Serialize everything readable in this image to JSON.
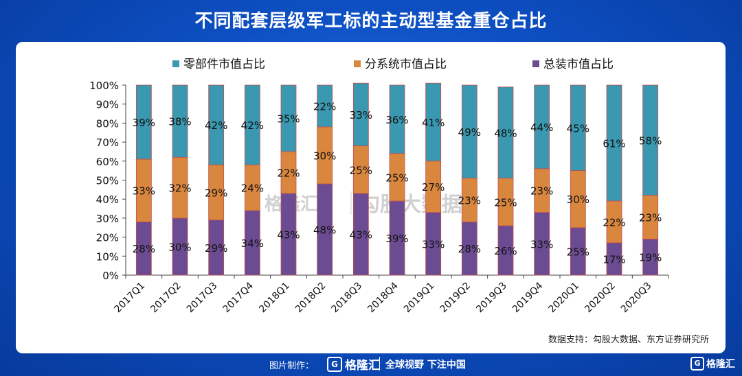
{
  "title": "不同配套层级军工标的主动型基金重仓占比",
  "source": "数据支持：勾股大数据、东方证券研究所",
  "footer": {
    "credit": "图片制作：",
    "brand": "格隆汇",
    "slogan": "全球视野 下注中国",
    "corner_brand": "格隆汇"
  },
  "watermark": {
    "brand": "格隆汇",
    "text": "勾股大数据"
  },
  "colors": {
    "background": "#0d4fc2",
    "components": "#3a98b0",
    "subsystems": "#d9873f",
    "assembly": "#6b4c93"
  },
  "chart_data": {
    "type": "bar",
    "stacked": true,
    "categories": [
      "2017Q1",
      "2017Q2",
      "2017Q3",
      "2017Q4",
      "2018Q1",
      "2018Q2",
      "2018Q3",
      "2018Q4",
      "2019Q1",
      "2019Q2",
      "2019Q3",
      "2019Q4",
      "2020Q1",
      "2020Q2",
      "2020Q3"
    ],
    "series": [
      {
        "name": "总装市值占比",
        "color": "#6b4c93",
        "values": [
          28,
          30,
          29,
          34,
          43,
          48,
          43,
          39,
          33,
          28,
          26,
          33,
          25,
          17,
          19
        ]
      },
      {
        "name": "分系统市值占比",
        "color": "#d9873f",
        "values": [
          33,
          32,
          29,
          24,
          22,
          30,
          25,
          25,
          27,
          23,
          25,
          23,
          30,
          22,
          23
        ]
      },
      {
        "name": "零部件市值占比",
        "color": "#3a98b0",
        "values": [
          39,
          38,
          42,
          42,
          35,
          22,
          33,
          36,
          41,
          49,
          48,
          44,
          45,
          61,
          58
        ]
      }
    ],
    "legend_order": [
      "零部件市值占比",
      "分系统市值占比",
      "总装市值占比"
    ],
    "yticks": [
      "0%",
      "10%",
      "20%",
      "30%",
      "40%",
      "50%",
      "60%",
      "70%",
      "80%",
      "90%",
      "100%"
    ],
    "ylim": [
      0,
      100
    ],
    "legend_position": "top",
    "grid": false
  }
}
